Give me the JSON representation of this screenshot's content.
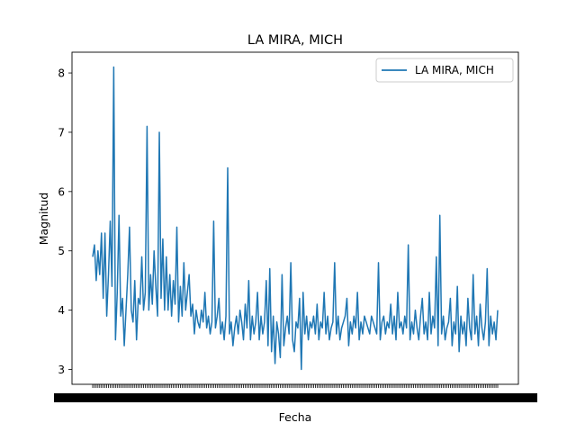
{
  "chart_data": {
    "type": "line",
    "title": "LA MIRA, MICH",
    "xlabel": "Fecha",
    "ylabel": "Magnitud",
    "ylim": [
      2.75,
      8.35
    ],
    "yticks": [
      3,
      4,
      5,
      6,
      7,
      8
    ],
    "grid": false,
    "legend": {
      "position": "top-right",
      "entries": [
        "LA MIRA, MICH"
      ]
    },
    "x_tick_labels_note": "dense overlapping date tick labels (illegible)",
    "series": [
      {
        "name": "LA MIRA, MICH",
        "color": "#1f77b4",
        "values": [
          4.9,
          5.1,
          4.5,
          5.0,
          4.6,
          5.3,
          4.2,
          5.3,
          3.9,
          4.6,
          5.5,
          4.4,
          8.1,
          3.5,
          4.3,
          5.6,
          3.9,
          4.2,
          3.4,
          4.0,
          4.6,
          5.4,
          4.0,
          3.8,
          4.5,
          3.5,
          4.2,
          4.1,
          4.9,
          4.0,
          4.3,
          7.1,
          4.0,
          4.6,
          4.1,
          5.0,
          4.4,
          3.9,
          7.0,
          4.2,
          5.2,
          4.0,
          4.9,
          4.0,
          4.6,
          3.9,
          4.5,
          4.1,
          5.4,
          3.8,
          4.4,
          3.9,
          4.8,
          4.0,
          4.3,
          4.6,
          3.9,
          4.1,
          3.6,
          4.0,
          3.8,
          3.7,
          4.0,
          3.8,
          4.3,
          3.7,
          3.9,
          3.6,
          3.8,
          5.5,
          3.7,
          3.9,
          4.2,
          3.6,
          3.8,
          3.5,
          3.9,
          6.4,
          3.6,
          3.8,
          3.4,
          3.7,
          3.9,
          3.6,
          4.0,
          3.8,
          3.5,
          4.1,
          3.7,
          4.5,
          3.5,
          3.9,
          3.6,
          3.8,
          4.3,
          3.5,
          3.9,
          3.6,
          3.8,
          4.5,
          3.4,
          4.7,
          3.3,
          3.9,
          3.1,
          3.8,
          3.6,
          3.2,
          4.6,
          3.4,
          3.7,
          3.9,
          3.6,
          4.8,
          3.5,
          3.3,
          3.8,
          3.7,
          4.2,
          3.0,
          4.3,
          3.6,
          3.9,
          3.5,
          3.8,
          3.7,
          3.9,
          3.6,
          4.1,
          3.5,
          3.8,
          3.7,
          4.3,
          3.6,
          3.9,
          3.5,
          3.7,
          3.8,
          4.8,
          3.6,
          3.9,
          3.5,
          3.7,
          3.8,
          3.9,
          4.2,
          3.4,
          3.8,
          3.6,
          3.9,
          3.7,
          4.3,
          3.5,
          3.8,
          3.6,
          3.9,
          3.8,
          3.7,
          3.6,
          3.9,
          3.8,
          3.7,
          3.6,
          4.8,
          3.5,
          3.8,
          3.9,
          3.6,
          3.8,
          3.7,
          4.1,
          3.6,
          3.9,
          3.5,
          4.3,
          3.7,
          3.8,
          3.6,
          3.9,
          3.7,
          5.1,
          3.5,
          3.8,
          3.6,
          4.0,
          3.7,
          3.5,
          3.9,
          4.2,
          3.6,
          3.8,
          3.5,
          4.3,
          3.6,
          3.9,
          3.7,
          4.9,
          3.4,
          5.6,
          3.6,
          3.9,
          3.5,
          3.7,
          3.8,
          4.2,
          3.4,
          3.8,
          3.6,
          4.4,
          3.3,
          3.9,
          3.6,
          3.8,
          3.4,
          4.2,
          3.7,
          3.5,
          4.6,
          3.6,
          3.9,
          3.4,
          4.1,
          3.7,
          3.5,
          3.8,
          4.7,
          3.4,
          3.9,
          3.6,
          3.8,
          3.5,
          4.0
        ]
      }
    ]
  }
}
